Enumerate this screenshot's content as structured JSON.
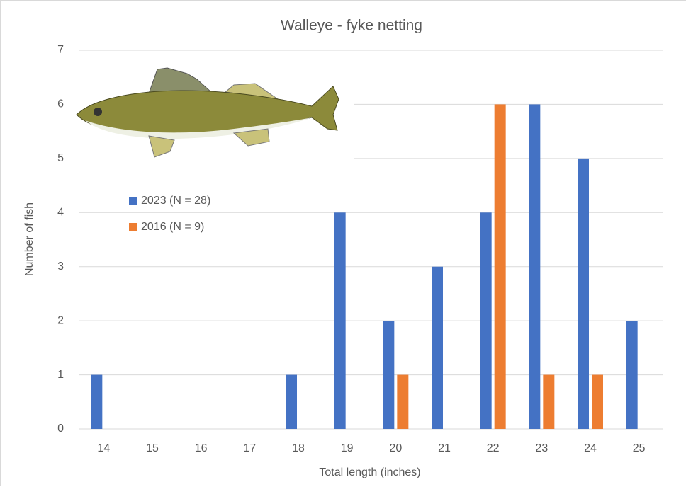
{
  "chart_data": {
    "type": "bar",
    "title": "Walleye - fyke netting",
    "x_label": "Total length (inches)",
    "y_label": "Number of fish",
    "categories": [
      "14",
      "15",
      "16",
      "17",
      "18",
      "19",
      "20",
      "21",
      "22",
      "23",
      "24",
      "25"
    ],
    "series": [
      {
        "name": "2023 (N = 28)",
        "color": "#4472c4",
        "values": [
          1,
          0,
          0,
          0,
          1,
          4,
          2,
          3,
          4,
          6,
          5,
          2
        ]
      },
      {
        "name": "2016 (N = 9)",
        "color": "#ed7d31",
        "values": [
          0,
          0,
          0,
          0,
          0,
          0,
          1,
          0,
          6,
          1,
          1,
          0
        ]
      }
    ],
    "ylim": [
      0,
      7
    ],
    "yticks": [
      0,
      1,
      2,
      3,
      4,
      5,
      6,
      7
    ],
    "grid": true
  }
}
